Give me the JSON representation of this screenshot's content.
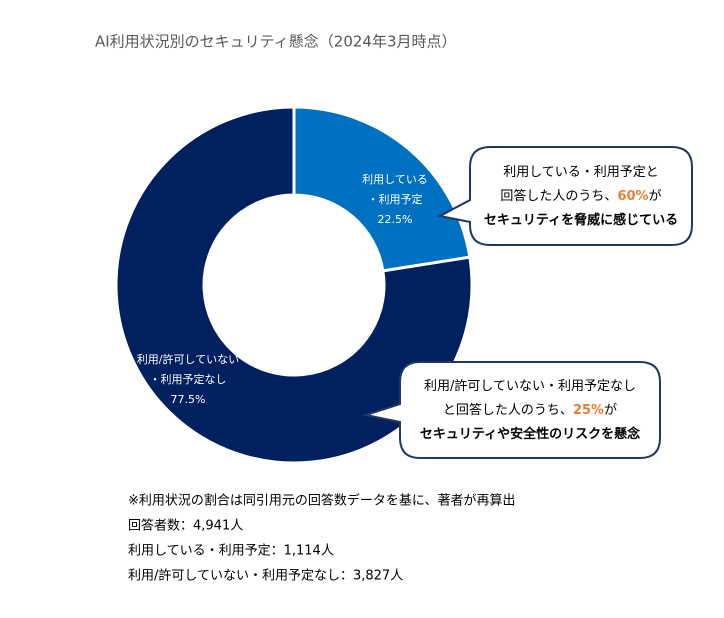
{
  "chart_data": {
    "type": "donut",
    "title": "AI利用状況別のセキュリティ懸念（2024年3月時点）",
    "categories": [
      [
        "利用している",
        "・利用予定"
      ],
      [
        "利用/許可していない",
        "・利用予定なし"
      ]
    ],
    "values": [
      22.5,
      77.5
    ],
    "value_labels": [
      "22.5%",
      "77.5%"
    ],
    "colors": [
      "#0070c0",
      "#002060"
    ],
    "callouts": [
      {
        "lines": [
          [
            "利用している・利用予定と"
          ],
          [
            "回答した人のうち、",
            {
              "text": "60%",
              "color": "#ed7d31"
            },
            "が"
          ],
          [
            {
              "text": "セキュリティを脅威に感じている",
              "bold": true
            }
          ]
        ]
      },
      {
        "lines": [
          [
            "利用/許可していない・利用予定なし"
          ],
          [
            "と回答した人のうち、",
            {
              "text": "25%",
              "color": "#ed7d31"
            },
            "が"
          ],
          [
            {
              "text": "セキュリティや安全性のリスクを懸念",
              "bold": true
            }
          ]
        ]
      }
    ],
    "notes": [
      "※利用状況の割合は同引用元の回答数データを基に、著者が再算出",
      "回答者数：4,941人",
      "利用している・利用予定：1,114人",
      "利用/許可していない・利用予定なし：3,827人"
    ]
  }
}
